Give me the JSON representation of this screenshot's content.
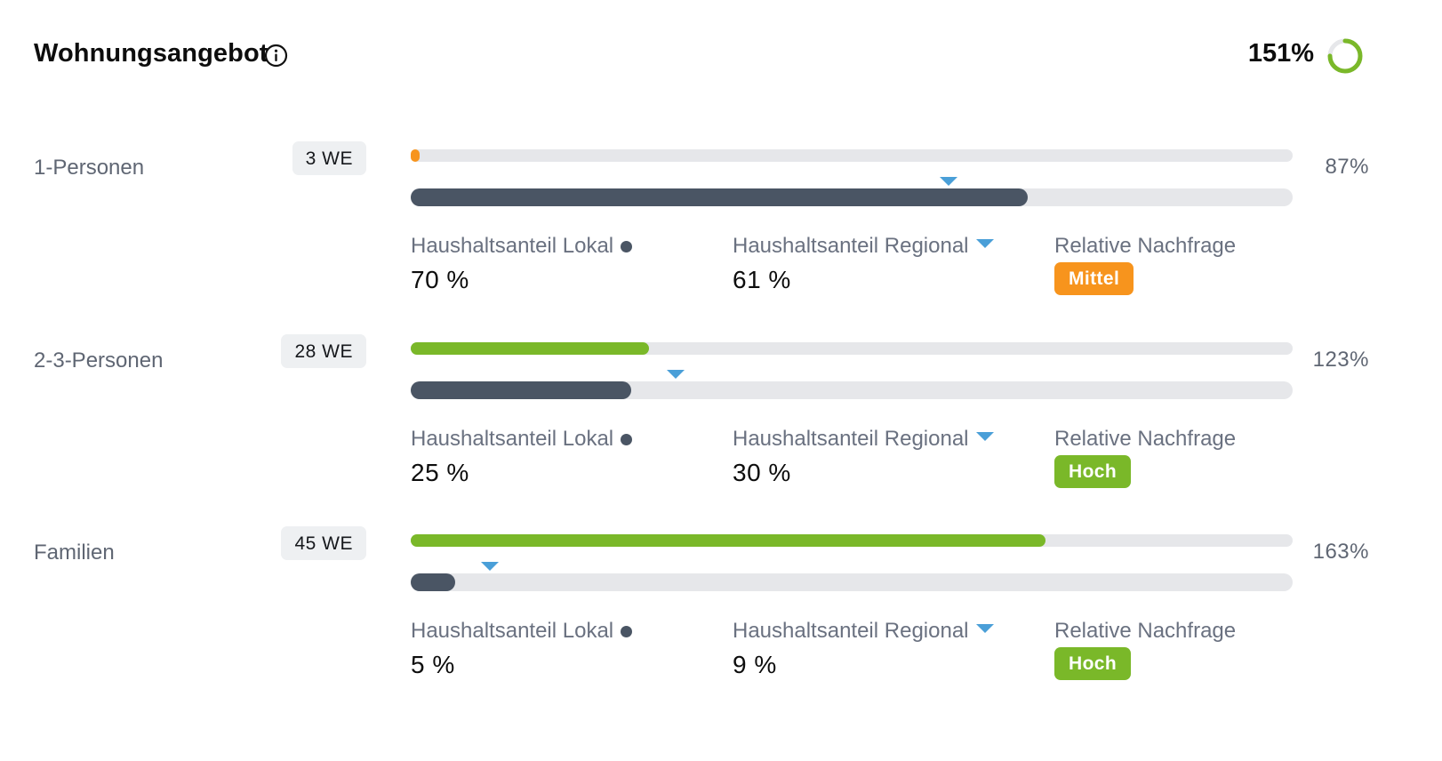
{
  "header": {
    "title": "Wohnungsangebot",
    "total_value": "151%",
    "total_fraction": 0.75,
    "ring_color": "#7ab829",
    "ring_track_color": "#e6e7ea"
  },
  "legend": {
    "local_label": "Haushaltsanteil Lokal",
    "regional_label": "Haushaltsanteil Regional",
    "demand_label": "Relative Nachfrage"
  },
  "colors": {
    "accent_green": "#7ab829",
    "accent_orange": "#f7941d",
    "bar_dark": "#4a5564",
    "regional_marker": "#4a9fd8"
  },
  "rows": [
    {
      "label": "1-Personen",
      "units": "3 WE",
      "percent": "87%",
      "supply_fraction": 0,
      "supply_color": "#f7941d",
      "local_value": "70 %",
      "local_fraction": 0.7,
      "regional_value": "61 %",
      "regional_fraction": 0.61,
      "demand": "Mittel",
      "demand_color": "#f7941d"
    },
    {
      "label": "2-3-Personen",
      "units": "28 WE",
      "percent": "123%",
      "supply_fraction": 0.27,
      "supply_color": "#7ab829",
      "local_value": "25 %",
      "local_fraction": 0.25,
      "regional_value": "30 %",
      "regional_fraction": 0.3,
      "demand": "Hoch",
      "demand_color": "#7ab829"
    },
    {
      "label": "Familien",
      "units": "45 WE",
      "percent": "163%",
      "supply_fraction": 0.72,
      "supply_color": "#7ab829",
      "local_value": "5 %",
      "local_fraction": 0.05,
      "regional_value": "9 %",
      "regional_fraction": 0.09,
      "demand": "Hoch",
      "demand_color": "#7ab829"
    }
  ]
}
